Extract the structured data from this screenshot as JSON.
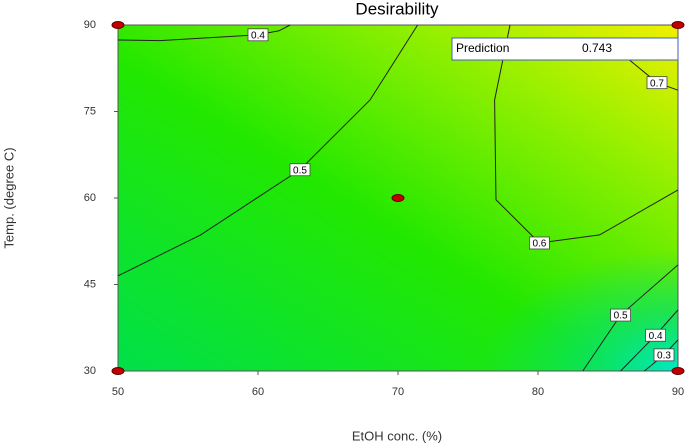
{
  "chart_data": {
    "type": "contour",
    "title": "Desirability",
    "x_label": "EtOH conc. (%)",
    "y_label": "Temp. (degree C)",
    "xlim": [
      50,
      90
    ],
    "ylim": [
      30,
      90
    ],
    "xticks": [
      50,
      60,
      70,
      80,
      90
    ],
    "yticks": [
      30,
      45,
      60,
      75,
      90
    ],
    "contours": [
      {
        "level": 0.4,
        "x": [
          50,
          53,
          60,
          61.5,
          62.3
        ],
        "y": [
          87.4,
          87.3,
          88.3,
          89,
          90
        ]
      },
      {
        "level": 0.5,
        "x": [
          50,
          55.9,
          63,
          68,
          71.4
        ],
        "y": [
          46.5,
          53.6,
          64.9,
          77,
          90
        ]
      },
      {
        "level": 0.6,
        "x": [
          78,
          76.9,
          77,
          80.1,
          84.4,
          90
        ],
        "y": [
          90,
          77,
          59.7,
          52.2,
          53.6,
          61.4
        ]
      },
      {
        "level": 0.7,
        "x": [
          85.5,
          87,
          88.5,
          90
        ],
        "y": [
          86,
          83,
          80,
          78.7
        ]
      },
      {
        "level": 0.5,
        "x": [
          83.2,
          85.9,
          90
        ],
        "y": [
          30,
          39.7,
          48.4
        ]
      },
      {
        "level": 0.4,
        "x": [
          85.9,
          88.4,
          90
        ],
        "y": [
          30,
          36.2,
          40.6
        ]
      },
      {
        "level": 0.3,
        "x": [
          87.6,
          89,
          90
        ],
        "y": [
          30,
          32.8,
          35.4
        ]
      }
    ],
    "design_points": {
      "x": [
        50,
        90,
        70,
        50,
        90
      ],
      "y": [
        90,
        90,
        60,
        30,
        30
      ]
    },
    "prediction": {
      "label": "Prediction",
      "value": 0.743
    }
  }
}
